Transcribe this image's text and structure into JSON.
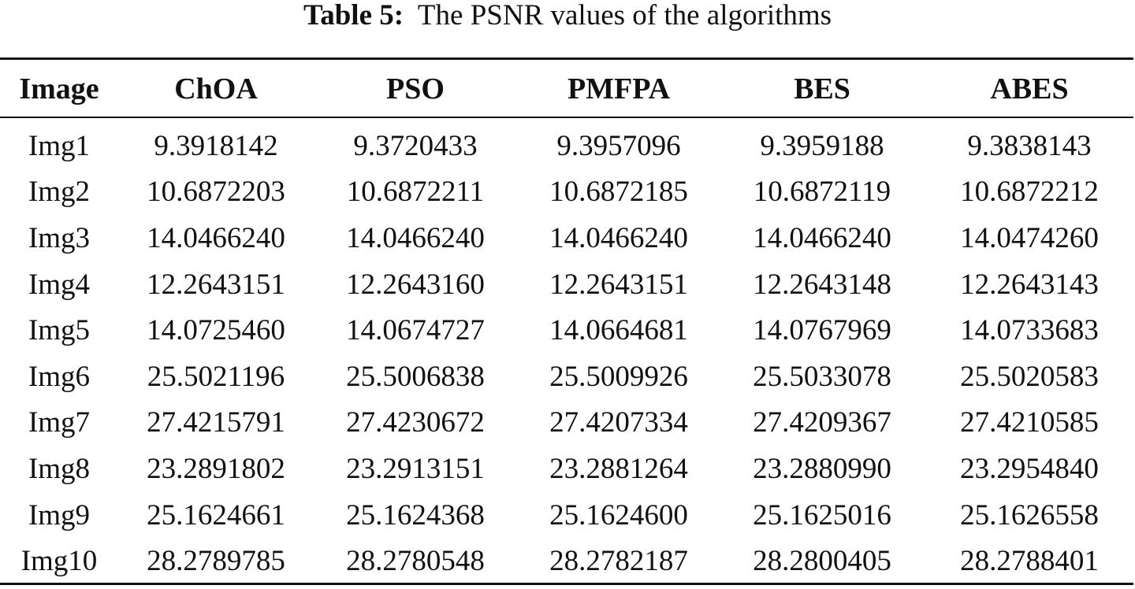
{
  "caption": {
    "label": "Table 5:",
    "text": "The PSNR values of the algorithms"
  },
  "table": {
    "headers": [
      "Image",
      "ChOA",
      "PSO",
      "PMFPA",
      "BES",
      "ABES"
    ],
    "rows": [
      [
        "Img1",
        "9.3918142",
        "9.3720433",
        "9.3957096",
        "9.3959188",
        "9.3838143"
      ],
      [
        "Img2",
        "10.6872203",
        "10.6872211",
        "10.6872185",
        "10.6872119",
        "10.6872212"
      ],
      [
        "Img3",
        "14.0466240",
        "14.0466240",
        "14.0466240",
        "14.0466240",
        "14.0474260"
      ],
      [
        "Img4",
        "12.2643151",
        "12.2643160",
        "12.2643151",
        "12.2643148",
        "12.2643143"
      ],
      [
        "Img5",
        "14.0725460",
        "14.0674727",
        "14.0664681",
        "14.0767969",
        "14.0733683"
      ],
      [
        "Img6",
        "25.5021196",
        "25.5006838",
        "25.5009926",
        "25.5033078",
        "25.5020583"
      ],
      [
        "Img7",
        "27.4215791",
        "27.4230672",
        "27.4207334",
        "27.4209367",
        "27.4210585"
      ],
      [
        "Img8",
        "23.2891802",
        "23.2913151",
        "23.2881264",
        "23.2880990",
        "23.2954840"
      ],
      [
        "Img9",
        "25.1624661",
        "25.1624368",
        "25.1624600",
        "25.1625016",
        "25.1626558"
      ],
      [
        "Img10",
        "28.2789785",
        "28.2780548",
        "28.2782187",
        "28.2800405",
        "28.2788401"
      ]
    ]
  }
}
